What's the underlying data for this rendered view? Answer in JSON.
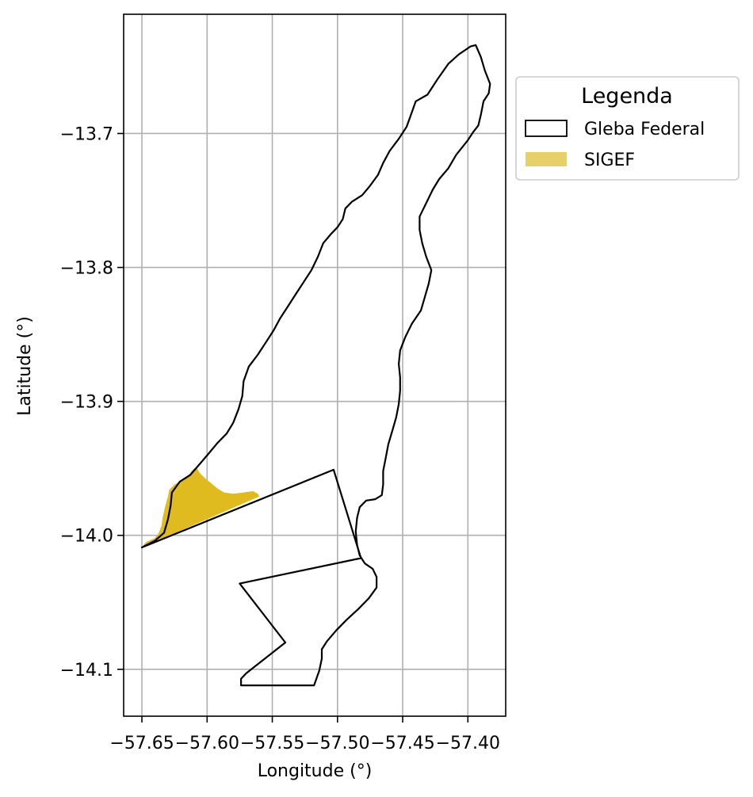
{
  "chart_data": {
    "type": "map",
    "xlabel": "Longitude (°)",
    "ylabel": "Latitude (°)",
    "xlim": [
      -57.664,
      -57.371
    ],
    "ylim": [
      -14.135,
      -13.611
    ],
    "grid": true,
    "xticks": [
      -57.65,
      -57.6,
      -57.55,
      -57.5,
      -57.45,
      -57.4
    ],
    "xtick_labels": [
      "−57.65",
      "−57.60",
      "−57.55",
      "−57.50",
      "−57.45",
      "−57.40"
    ],
    "yticks": [
      -13.7,
      -13.8,
      -13.9,
      -14.0,
      -14.1
    ],
    "ytick_labels": [
      "−13.7",
      "−13.8",
      "−13.9",
      "−14.0",
      "−14.1"
    ],
    "legend": {
      "title": "Legenda",
      "position": "outside-upper-right",
      "entries": [
        {
          "label": "Gleba Federal",
          "style": "outline",
          "color": "#000000"
        },
        {
          "label": "SIGEF",
          "style": "fill",
          "color": "#e6d06a"
        }
      ]
    },
    "layers": {
      "gleba_federal": {
        "name": "Gleba Federal",
        "edgecolor": "#000000",
        "facecolor": "none",
        "coords": [
          [
            -57.65,
            -14.009
          ],
          [
            -57.64,
            -14.004
          ],
          [
            -57.633,
            -13.998
          ],
          [
            -57.63,
            -13.988
          ],
          [
            -57.628,
            -13.978
          ],
          [
            -57.627,
            -13.968
          ],
          [
            -57.621,
            -13.96
          ],
          [
            -57.613,
            -13.955
          ],
          [
            -57.605,
            -13.946
          ],
          [
            -57.598,
            -13.938
          ],
          [
            -57.592,
            -13.931
          ],
          [
            -57.585,
            -13.924
          ],
          [
            -57.58,
            -13.916
          ],
          [
            -57.576,
            -13.906
          ],
          [
            -57.573,
            -13.896
          ],
          [
            -57.572,
            -13.885
          ],
          [
            -57.568,
            -13.874
          ],
          [
            -57.561,
            -13.865
          ],
          [
            -57.555,
            -13.856
          ],
          [
            -57.549,
            -13.847
          ],
          [
            -57.544,
            -13.838
          ],
          [
            -57.538,
            -13.829
          ],
          [
            -57.532,
            -13.82
          ],
          [
            -57.526,
            -13.811
          ],
          [
            -57.52,
            -13.802
          ],
          [
            -57.515,
            -13.792
          ],
          [
            -57.511,
            -13.782
          ],
          [
            -57.505,
            -13.775
          ],
          [
            -57.5,
            -13.77
          ],
          [
            -57.496,
            -13.764
          ],
          [
            -57.494,
            -13.756
          ],
          [
            -57.489,
            -13.751
          ],
          [
            -57.481,
            -13.746
          ],
          [
            -57.475,
            -13.739
          ],
          [
            -57.469,
            -13.731
          ],
          [
            -57.465,
            -13.722
          ],
          [
            -57.46,
            -13.713
          ],
          [
            -57.453,
            -13.704
          ],
          [
            -57.447,
            -13.695
          ],
          [
            -57.444,
            -13.687
          ],
          [
            -57.44,
            -13.676
          ],
          [
            -57.431,
            -13.671
          ],
          [
            -57.423,
            -13.659
          ],
          [
            -57.415,
            -13.648
          ],
          [
            -57.407,
            -13.641
          ],
          [
            -57.398,
            -13.635
          ],
          [
            -57.394,
            -13.634
          ],
          [
            -57.39,
            -13.643
          ],
          [
            -57.387,
            -13.653
          ],
          [
            -57.383,
            -13.663
          ],
          [
            -57.384,
            -13.67
          ],
          [
            -57.388,
            -13.676
          ],
          [
            -57.39,
            -13.686
          ],
          [
            -57.392,
            -13.694
          ],
          [
            -57.396,
            -13.699
          ],
          [
            -57.4,
            -13.705
          ],
          [
            -57.409,
            -13.716
          ],
          [
            -57.415,
            -13.726
          ],
          [
            -57.422,
            -13.734
          ],
          [
            -57.427,
            -13.742
          ],
          [
            -57.432,
            -13.752
          ],
          [
            -57.437,
            -13.762
          ],
          [
            -57.437,
            -13.772
          ],
          [
            -57.435,
            -13.782
          ],
          [
            -57.432,
            -13.792
          ],
          [
            -57.428,
            -13.802
          ],
          [
            -57.43,
            -13.812
          ],
          [
            -57.433,
            -13.822
          ],
          [
            -57.436,
            -13.832
          ],
          [
            -57.443,
            -13.842
          ],
          [
            -57.448,
            -13.852
          ],
          [
            -57.452,
            -13.862
          ],
          [
            -57.453,
            -13.872
          ],
          [
            -57.452,
            -13.882
          ],
          [
            -57.452,
            -13.892
          ],
          [
            -57.453,
            -13.902
          ],
          [
            -57.455,
            -13.912
          ],
          [
            -57.458,
            -13.922
          ],
          [
            -57.461,
            -13.932
          ],
          [
            -57.463,
            -13.942
          ],
          [
            -57.465,
            -13.952
          ],
          [
            -57.465,
            -13.962
          ],
          [
            -57.466,
            -13.97
          ],
          [
            -57.471,
            -13.973
          ],
          [
            -57.478,
            -13.974
          ],
          [
            -57.483,
            -13.979
          ],
          [
            -57.485,
            -13.987
          ],
          [
            -57.486,
            -13.997
          ],
          [
            -57.485,
            -14.007
          ],
          [
            -57.483,
            -14.015
          ],
          [
            -57.479,
            -14.021
          ],
          [
            -57.473,
            -14.025
          ],
          [
            -57.47,
            -14.031
          ],
          [
            -57.47,
            -14.039
          ],
          [
            -57.476,
            -14.047
          ],
          [
            -57.484,
            -14.055
          ],
          [
            -57.493,
            -14.063
          ],
          [
            -57.501,
            -14.071
          ],
          [
            -57.508,
            -14.079
          ],
          [
            -57.512,
            -14.085
          ],
          [
            -57.512,
            -14.092
          ],
          [
            -57.514,
            -14.101
          ],
          [
            -57.518,
            -14.112
          ],
          [
            -57.574,
            -14.112
          ],
          [
            -57.574,
            -14.107
          ],
          [
            -57.57,
            -14.103
          ],
          [
            -57.54,
            -14.08
          ],
          [
            -57.575,
            -14.036
          ],
          [
            -57.482,
            -14.017
          ],
          [
            -57.503,
            -13.951
          ],
          [
            -57.65,
            -14.009
          ]
        ]
      },
      "sigef": {
        "name": "SIGEF",
        "facecolor": "#dfbb1f",
        "coords": [
          [
            -57.65,
            -14.009
          ],
          [
            -57.647,
            -14.005
          ],
          [
            -57.64,
            -14.002
          ],
          [
            -57.637,
            -13.998
          ],
          [
            -57.635,
            -13.993
          ],
          [
            -57.634,
            -13.986
          ],
          [
            -57.632,
            -13.978
          ],
          [
            -57.63,
            -13.971
          ],
          [
            -57.629,
            -13.966
          ],
          [
            -57.625,
            -13.962
          ],
          [
            -57.619,
            -13.959
          ],
          [
            -57.614,
            -13.955
          ],
          [
            -57.611,
            -13.951
          ],
          [
            -57.608,
            -13.949
          ],
          [
            -57.606,
            -13.953
          ],
          [
            -57.602,
            -13.957
          ],
          [
            -57.597,
            -13.961
          ],
          [
            -57.592,
            -13.965
          ],
          [
            -57.587,
            -13.968
          ],
          [
            -57.58,
            -13.969
          ],
          [
            -57.572,
            -13.968
          ],
          [
            -57.565,
            -13.967
          ],
          [
            -57.561,
            -13.969
          ],
          [
            -57.56,
            -13.971
          ],
          [
            -57.65,
            -14.009
          ]
        ]
      }
    }
  }
}
